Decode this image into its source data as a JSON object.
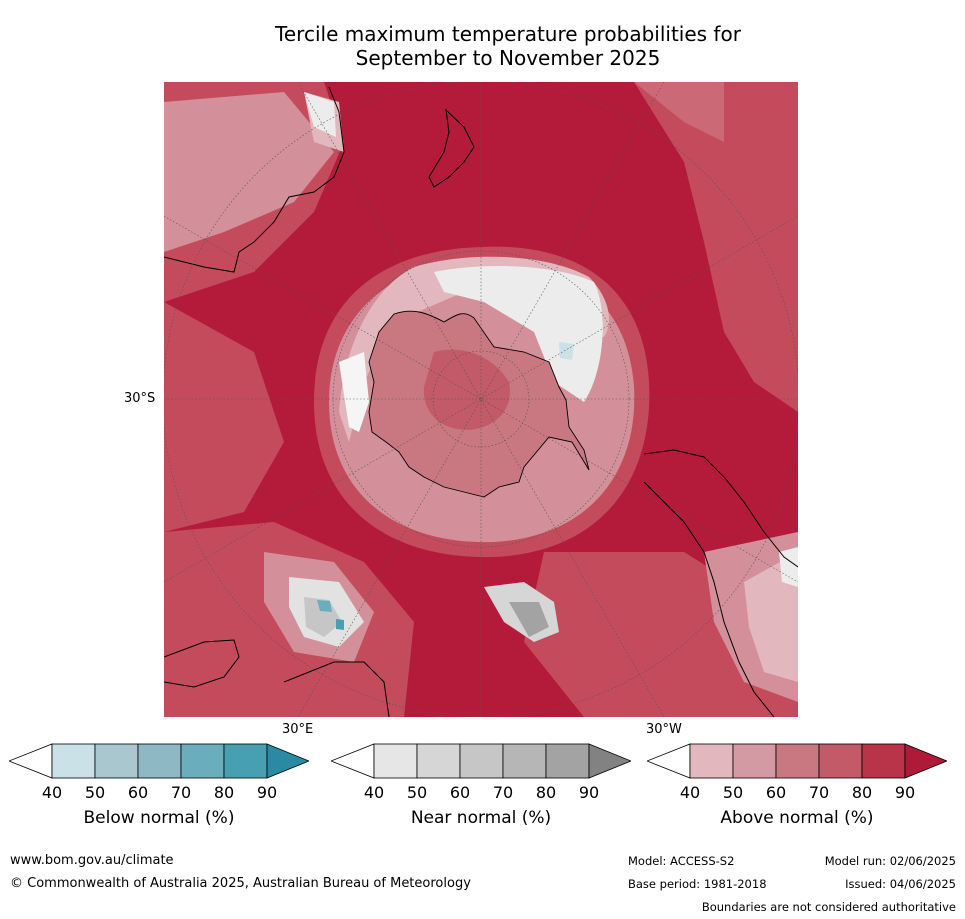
{
  "title": {
    "line1": "Tercile maximum temperature probabilities for",
    "line2": "September to November 2025"
  },
  "map": {
    "lat_labels": [
      "30°S"
    ],
    "lon_labels": [
      "30°E",
      "30°W"
    ]
  },
  "legends": [
    {
      "caption": "Below normal (%)",
      "ticks": [
        "40",
        "50",
        "60",
        "70",
        "80",
        "90"
      ],
      "colors": [
        "#c9e1e7",
        "#a9c7cf",
        "#8db8c4",
        "#6aaebd",
        "#47a0b1",
        "#2b8aa3"
      ]
    },
    {
      "caption": "Near normal (%)",
      "ticks": [
        "40",
        "50",
        "60",
        "70",
        "80",
        "90"
      ],
      "colors": [
        "#e6e6e6",
        "#d6d6d6",
        "#c6c6c6",
        "#b6b6b6",
        "#a3a3a3",
        "#828282"
      ]
    },
    {
      "caption": "Above normal (%)",
      "ticks": [
        "40",
        "50",
        "60",
        "70",
        "80",
        "90"
      ],
      "colors": [
        "#e2b8be",
        "#d49aa3",
        "#c97881",
        "#c25a67",
        "#b93449",
        "#ae1a37"
      ]
    }
  ],
  "footer": {
    "website": "www.bom.gov.au/climate",
    "copyright": "© Commonwealth of Australia 2025, Australian Bureau of Meteorology",
    "model": "Model: ACCESS-S2",
    "model_run": "Model run: 02/06/2025",
    "base_period": "Base period: 1981-2018",
    "issued": "Issued: 04/06/2025",
    "disclaimer": "Boundaries are not considered authoritative"
  }
}
